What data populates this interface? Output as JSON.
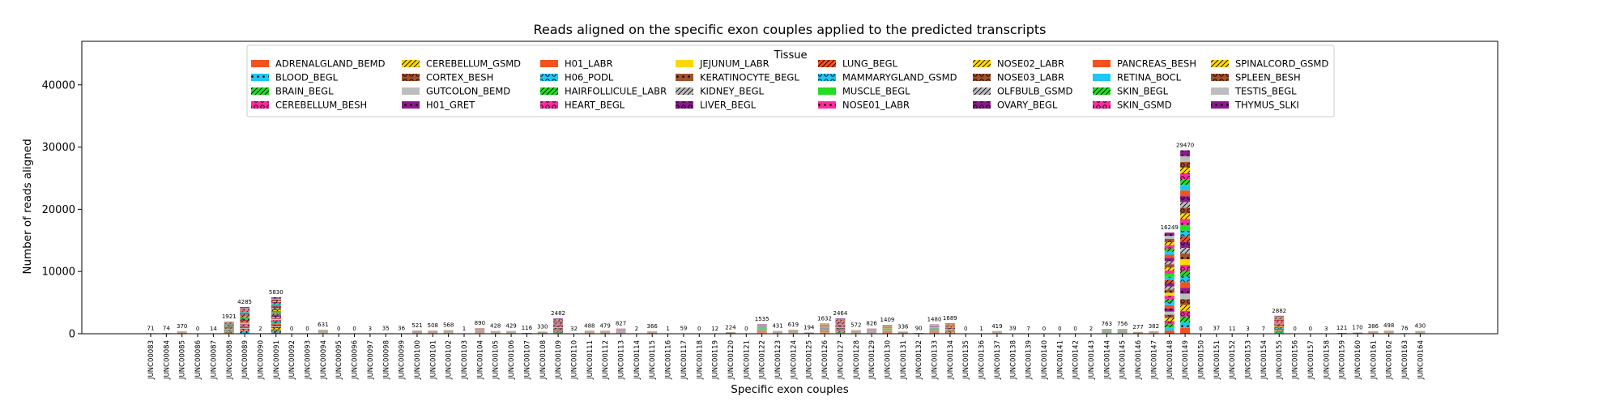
{
  "chart_data": {
    "type": "bar",
    "stacked": true,
    "title": "Reads aligned on the specific exon couples applied to the predicted transcripts",
    "xlabel": "Specific exon couples",
    "ylabel": "Number of reads aligned",
    "ylim": [
      0,
      47000
    ],
    "yticks": [
      0,
      10000,
      20000,
      30000,
      40000
    ],
    "grid": false,
    "legend": {
      "title": "Tissue",
      "placement": "top-center",
      "entries": [
        {
          "label": "ADRENALGLAND_BEMD",
          "color": "#f4511e",
          "hatch": "none"
        },
        {
          "label": "BLOOD_BEGL",
          "color": "#1ec8f4",
          "hatch": "dot"
        },
        {
          "label": "BRAIN_BEGL",
          "color": "#22dd22",
          "hatch": "slash"
        },
        {
          "label": "CEREBELLUM_BESH",
          "color": "#ff2aa0",
          "hatch": "circle"
        },
        {
          "label": "CEREBELLUM_GSMD",
          "color": "#ffd700",
          "hatch": "slash"
        },
        {
          "label": "CORTEX_BESH",
          "color": "#a0522d",
          "hatch": "circle"
        },
        {
          "label": "GUTCOLON_BEMD",
          "color": "#bdbdbd",
          "hatch": "none"
        },
        {
          "label": "H01_GRET",
          "color": "#8b1a8b",
          "hatch": "dot"
        },
        {
          "label": "H01_LABR",
          "color": "#f4511e",
          "hatch": "none"
        },
        {
          "label": "H06_PODL",
          "color": "#1ec8f4",
          "hatch": "circle"
        },
        {
          "label": "HAIRFOLLICULE_LABR",
          "color": "#22dd22",
          "hatch": "slash"
        },
        {
          "label": "HEART_BEGL",
          "color": "#ff2aa0",
          "hatch": "circle"
        },
        {
          "label": "JEJUNUM_LABR",
          "color": "#ffd700",
          "hatch": "none"
        },
        {
          "label": "KERATINOCYTE_BEGL",
          "color": "#a0522d",
          "hatch": "dot"
        },
        {
          "label": "KIDNEY_BEGL",
          "color": "#bdbdbd",
          "hatch": "slash"
        },
        {
          "label": "LIVER_BEGL",
          "color": "#8b1a8b",
          "hatch": "circle"
        },
        {
          "label": "LUNG_BEGL",
          "color": "#f4511e",
          "hatch": "slash"
        },
        {
          "label": "MAMMARYGLAND_GSMD",
          "color": "#1ec8f4",
          "hatch": "circle"
        },
        {
          "label": "MUSCLE_BEGL",
          "color": "#22dd22",
          "hatch": "none"
        },
        {
          "label": "NOSE01_LABR",
          "color": "#ff2aa0",
          "hatch": "dot"
        },
        {
          "label": "NOSE02_LABR",
          "color": "#ffd700",
          "hatch": "slash"
        },
        {
          "label": "NOSE03_LABR",
          "color": "#a0522d",
          "hatch": "circle"
        },
        {
          "label": "OLFBULB_GSMD",
          "color": "#bdbdbd",
          "hatch": "slash"
        },
        {
          "label": "OVARY_BEGL",
          "color": "#8b1a8b",
          "hatch": "circle"
        },
        {
          "label": "PANCREAS_BESH",
          "color": "#f4511e",
          "hatch": "none"
        },
        {
          "label": "RETINA_BOCL",
          "color": "#1ec8f4",
          "hatch": "none"
        },
        {
          "label": "SKIN_BEGL",
          "color": "#22dd22",
          "hatch": "slash"
        },
        {
          "label": "SKIN_GSMD",
          "color": "#ff2aa0",
          "hatch": "circle"
        },
        {
          "label": "SPINALCORD_GSMD",
          "color": "#ffd700",
          "hatch": "slash"
        },
        {
          "label": "SPLEEN_BESH",
          "color": "#a0522d",
          "hatch": "circle"
        },
        {
          "label": "TESTIS_BEGL",
          "color": "#bdbdbd",
          "hatch": "none"
        },
        {
          "label": "THYMUS_SLKI",
          "color": "#8b1a8b",
          "hatch": "dot"
        }
      ]
    },
    "categories": [
      "JUNC00083",
      "JUNC00084",
      "JUNC00085",
      "JUNC00086",
      "JUNC00087",
      "JUNC00088",
      "JUNC00089",
      "JUNC00090",
      "JUNC00091",
      "JUNC00092",
      "JUNC00093",
      "JUNC00094",
      "JUNC00095",
      "JUNC00096",
      "JUNC00097",
      "JUNC00098",
      "JUNC00099",
      "JUNC00100",
      "JUNC00101",
      "JUNC00102",
      "JUNC00103",
      "JUNC00104",
      "JUNC00105",
      "JUNC00106",
      "JUNC00107",
      "JUNC00108",
      "JUNC00109",
      "JUNC00110",
      "JUNC00111",
      "JUNC00112",
      "JUNC00113",
      "JUNC00114",
      "JUNC00115",
      "JUNC00116",
      "JUNC00117",
      "JUNC00118",
      "JUNC00119",
      "JUNC00120",
      "JUNC00121",
      "JUNC00122",
      "JUNC00123",
      "JUNC00124",
      "JUNC00125",
      "JUNC00126",
      "JUNC00127",
      "JUNC00128",
      "JUNC00129",
      "JUNC00130",
      "JUNC00131",
      "JUNC00132",
      "JUNC00133",
      "JUNC00134",
      "JUNC00135",
      "JUNC00136",
      "JUNC00137",
      "JUNC00138",
      "JUNC00139",
      "JUNC00140",
      "JUNC00141",
      "JUNC00142",
      "JUNC00143",
      "JUNC00144",
      "JUNC00145",
      "JUNC00146",
      "JUNC00147",
      "JUNC00148",
      "JUNC00149",
      "JUNC00150",
      "JUNC00151",
      "JUNC00152",
      "JUNC00153",
      "JUNC00154",
      "JUNC00155",
      "JUNC00156",
      "JUNC00157",
      "JUNC00158",
      "JUNC00159",
      "JUNC00160",
      "JUNC00161",
      "JUNC00162",
      "JUNC00163",
      "JUNC00164"
    ],
    "totals": [
      71,
      74,
      370,
      0,
      14,
      1921,
      4285,
      2,
      5830,
      0,
      0,
      631,
      0,
      0,
      3,
      35,
      36,
      521,
      508,
      568,
      1,
      890,
      428,
      429,
      116,
      330,
      2482,
      32,
      488,
      479,
      827,
      2,
      366,
      1,
      59,
      0,
      12,
      224,
      0,
      1535,
      431,
      619,
      194,
      1632,
      2464,
      572,
      826,
      1409,
      336,
      90,
      1480,
      1689,
      0,
      1,
      419,
      39,
      7,
      0,
      0,
      0,
      2,
      763,
      756,
      277,
      382,
      16249,
      29470,
      0,
      37,
      11,
      3,
      7,
      2882,
      0,
      0,
      3,
      121,
      170,
      386,
      498,
      76,
      430
    ],
    "total_labels": [
      "71",
      "74",
      "370",
      "0",
      "14",
      "1921",
      "4285",
      "2",
      "5830",
      "0",
      "0",
      "631",
      "0",
      "0",
      "3",
      "35",
      "36",
      "521",
      "508",
      "568",
      "1",
      "890",
      "428",
      "429",
      "116",
      "330",
      "2482",
      "32",
      "488",
      "479",
      "827",
      "2",
      "366",
      "1",
      "59",
      "0",
      "12",
      "224",
      "0",
      "1535",
      "431",
      "619",
      "194",
      "1632",
      "2464",
      "572",
      "826",
      "1409",
      "336",
      "90",
      "1480",
      "1689",
      "0",
      "1",
      "419",
      "39",
      "7",
      "0",
      "0",
      "0",
      "2",
      "763",
      "756",
      "277",
      "382",
      "16249",
      "29470",
      "0",
      "37",
      "11",
      "3",
      "7",
      "2882",
      "0",
      "0",
      "3",
      "121",
      "170",
      "386",
      "498",
      "76",
      "430"
    ]
  }
}
